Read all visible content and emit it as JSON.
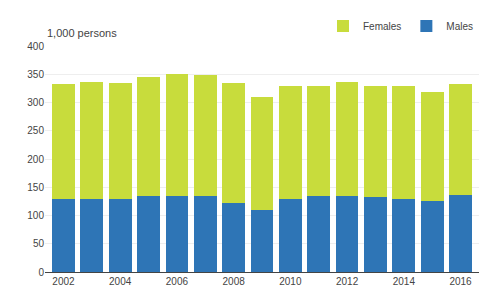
{
  "chart_data": {
    "type": "bar",
    "stacked": true,
    "ylabel": "1,000 persons",
    "x": [
      2002,
      2003,
      2004,
      2005,
      2006,
      2007,
      2008,
      2009,
      2010,
      2011,
      2012,
      2013,
      2014,
      2015,
      2016
    ],
    "series": [
      {
        "name": "Males",
        "color": "#2E75B6",
        "values": [
          129,
          129,
          129,
          135,
          134,
          134,
          122,
          110,
          129,
          135,
          134,
          133,
          129,
          125,
          136
        ]
      },
      {
        "name": "Females",
        "color": "#C8DC3C",
        "values": [
          204,
          207,
          205,
          211,
          217,
          214,
          212,
          200,
          201,
          195,
          202,
          197,
          200,
          194,
          197
        ]
      }
    ],
    "xlim": [
      2001.35,
      2016.65
    ],
    "xticks": [
      2002,
      2004,
      2006,
      2008,
      2010,
      2012,
      2014,
      2016
    ],
    "ylim": [
      0,
      400
    ],
    "yticks": [
      0,
      50,
      100,
      150,
      200,
      250,
      300,
      350,
      400
    ],
    "grid": true,
    "legend": "upper right"
  }
}
